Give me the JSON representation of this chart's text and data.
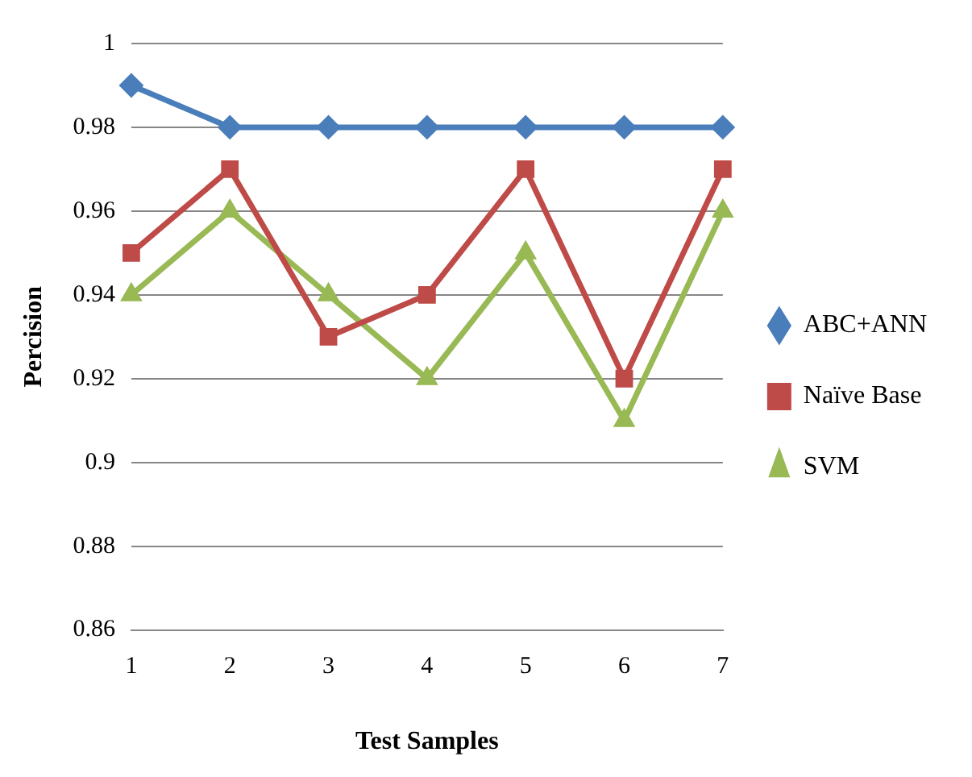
{
  "chart_data": {
    "type": "line",
    "xlabel": "Test Samples",
    "ylabel": "Percision",
    "categories": [
      "1",
      "2",
      "3",
      "4",
      "5",
      "6",
      "7"
    ],
    "series": [
      {
        "name": "ABC+ANN",
        "color": "#4a7ebb",
        "marker": "diamond",
        "values": [
          0.99,
          0.98,
          0.98,
          0.98,
          0.98,
          0.98,
          0.98
        ]
      },
      {
        "name": "Naïve Base",
        "color": "#be4b48",
        "marker": "square",
        "values": [
          0.95,
          0.97,
          0.93,
          0.94,
          0.97,
          0.92,
          0.97
        ]
      },
      {
        "name": "SVM",
        "color": "#98b954",
        "marker": "triangle",
        "values": [
          0.94,
          0.96,
          0.94,
          0.92,
          0.95,
          0.91,
          0.96
        ]
      }
    ],
    "ylim": [
      0.86,
      1
    ],
    "yticks": [
      0.86,
      0.88,
      0.9,
      0.92,
      0.94,
      0.96,
      0.98,
      1
    ],
    "grid": "y",
    "legend": "right",
    "line_style": "solid"
  }
}
